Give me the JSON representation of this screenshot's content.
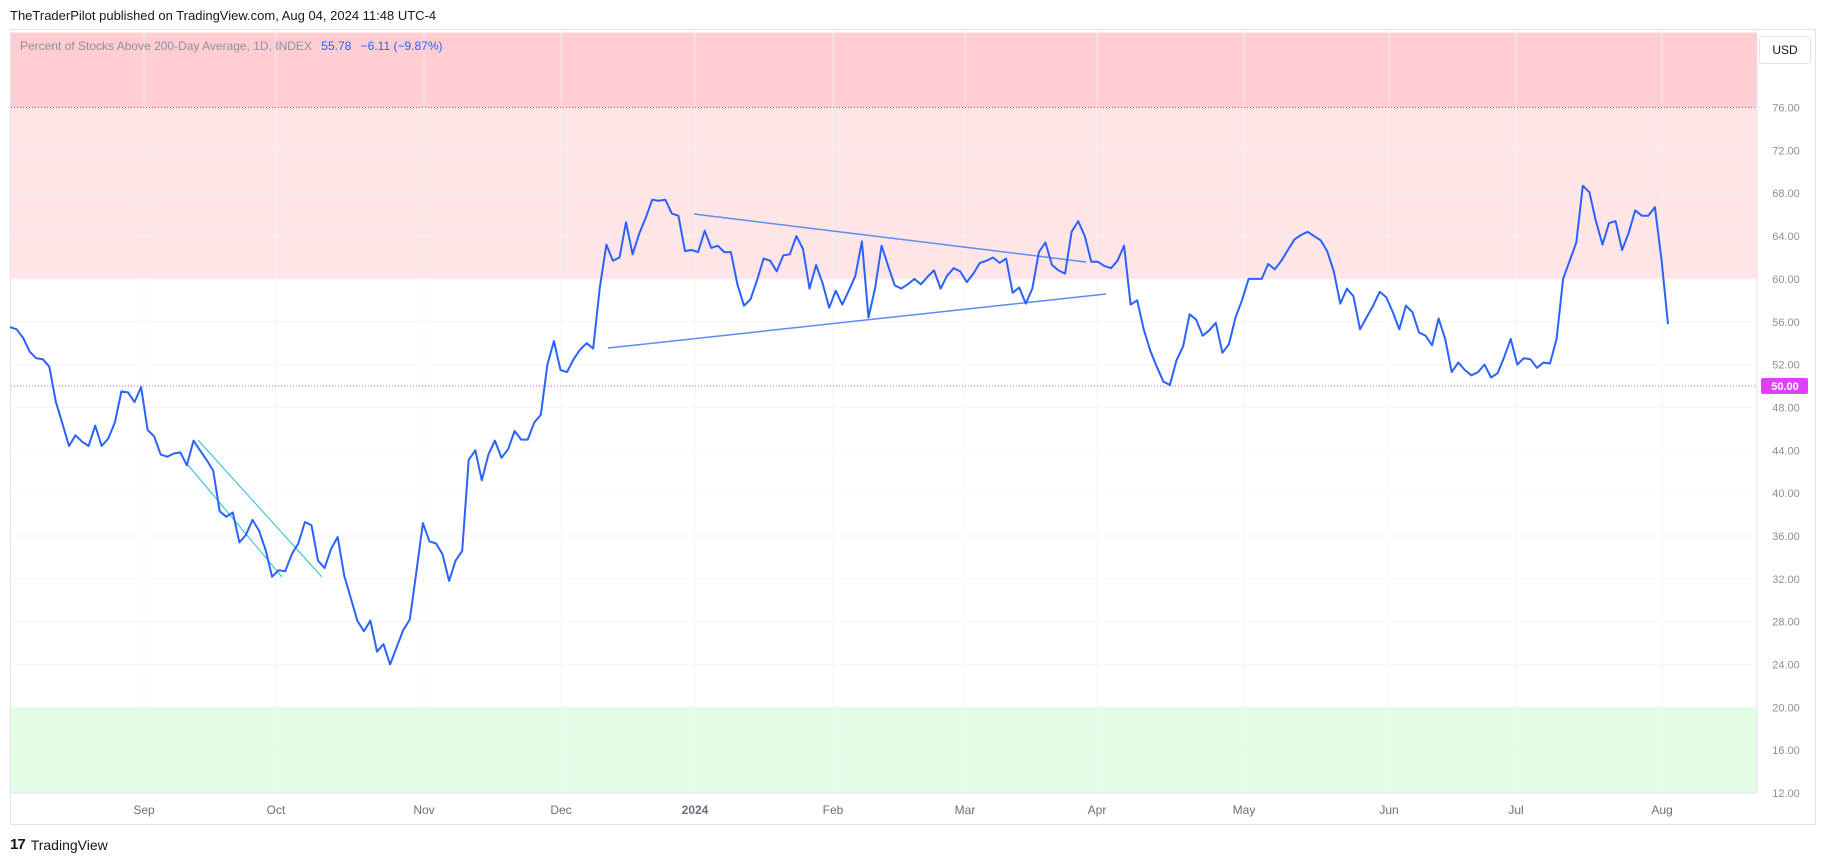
{
  "header": {
    "publisher_line": "TheTraderPilot published on TradingView.com, Aug 04, 2024 11:48 UTC-4"
  },
  "legend": {
    "series_name": "Percent of Stocks Above 200-Day Average, 1D, INDEX",
    "last": "55.78",
    "change": "−6.11 (−9.87%)"
  },
  "currency_button": "USD",
  "footer": {
    "logo_mark": "17",
    "brand": "TradingView"
  },
  "colors": {
    "line": "#2962ff",
    "trend_lines": "#5b8def",
    "channel": "#22c1d6",
    "overbought_strong": "#ffcdd2",
    "overbought": "#ffe5e6",
    "oversold": "#e2fde4",
    "level_76": "#e53935",
    "level_50": "#e040fb"
  },
  "chart_data": {
    "type": "line",
    "title": "Percent of Stocks Above 200-Day Average",
    "ylim": [
      12,
      83
    ],
    "yticks": [
      "76.00",
      "72.00",
      "68.00",
      "64.00",
      "60.00",
      "56.00",
      "52.00",
      "48.00",
      "44.00",
      "40.00",
      "36.00",
      "32.00",
      "28.00",
      "24.00",
      "20.00",
      "16.00",
      "12.00"
    ],
    "x_axis_labels": [
      "Sep",
      "Oct",
      "Nov",
      "Dec",
      "2024",
      "Feb",
      "Mar",
      "Apr",
      "May",
      "Jun",
      "Jul",
      "Aug"
    ],
    "grid": true,
    "zones": [
      {
        "from": 76,
        "to": 83,
        "color": "#ffcdd2"
      },
      {
        "from": 60,
        "to": 76,
        "color": "#ffe5e6"
      },
      {
        "from": 12,
        "to": 20,
        "color": "#e2fde4"
      }
    ],
    "hlines": [
      {
        "value": 76,
        "color": "#e53935",
        "style": "dotted"
      },
      {
        "value": 50,
        "color": "#e040fb",
        "style": "dotted",
        "label": "50.00"
      }
    ],
    "series": [
      {
        "values": [
          55.5,
          55.3,
          54.5,
          53.2,
          52.6,
          52.5,
          51.8,
          48.5,
          46.5,
          44.4,
          45.4,
          44.8,
          44.4,
          46.3,
          44.4,
          45.1,
          46.6,
          49.5,
          49.4,
          48.5,
          49.9,
          45.9,
          45.3,
          43.6,
          43.4,
          43.7,
          43.8,
          42.6,
          44.9,
          44.0,
          43.1,
          42.1,
          38.3,
          37.8,
          38.2,
          35.4,
          36.1,
          37.5,
          36.5,
          34.7,
          32.2,
          32.8,
          32.7,
          34.3,
          35.3,
          37.3,
          37.0,
          33.7,
          33.0,
          34.8,
          35.9,
          32.3,
          30.2,
          28.1,
          27.1,
          28.1,
          25.2,
          25.9,
          24.0,
          25.6,
          27.2,
          28.2,
          32.6,
          37.2,
          35.5,
          35.3,
          34.3,
          31.8,
          33.7,
          34.6,
          43.1,
          44.0,
          41.2,
          43.6,
          44.9,
          43.3,
          44.1,
          45.8,
          45.0,
          45.0,
          46.6,
          47.3,
          52.0,
          54.2,
          51.5,
          51.3,
          52.5,
          53.4,
          54.0,
          53.5,
          59.2,
          63.2,
          61.7,
          62.0,
          65.3,
          62.3,
          64.2,
          65.7,
          67.4,
          67.3,
          67.4,
          66.1,
          65.9,
          62.6,
          62.7,
          62.5,
          64.5,
          62.9,
          63.1,
          62.5,
          62.5,
          59.5,
          57.5,
          58.1,
          59.9,
          61.9,
          61.7,
          60.7,
          62.2,
          62.3,
          64.0,
          62.8,
          59.1,
          61.3,
          59.6,
          57.3,
          58.9,
          57.6,
          58.9,
          60.3,
          63.5,
          56.4,
          59.1,
          63.1,
          61.2,
          59.4,
          59.1,
          59.5,
          60.0,
          59.5,
          60.2,
          60.8,
          59.1,
          60.3,
          61.0,
          60.7,
          59.7,
          60.5,
          61.5,
          61.7,
          62.0,
          61.5,
          61.9,
          58.7,
          59.2,
          57.7,
          59.1,
          62.5,
          63.4,
          61.3,
          60.8,
          60.5,
          64.4,
          65.4,
          64.0,
          61.6,
          61.6,
          61.2,
          61.0,
          61.7,
          63.1,
          57.6,
          58.0,
          55.3,
          53.3,
          51.8,
          50.4,
          50.1,
          52.4,
          53.7,
          56.7,
          56.2,
          54.7,
          55.2,
          55.9,
          53.1,
          53.9,
          56.4,
          58.0,
          60.0,
          60.0,
          60.0,
          61.4,
          60.9,
          61.7,
          62.7,
          63.7,
          64.1,
          64.4,
          64.0,
          63.6,
          62.6,
          60.7,
          57.7,
          59.1,
          58.4,
          55.3,
          56.4,
          57.5,
          58.8,
          58.3,
          56.9,
          55.3,
          57.5,
          56.9,
          55.0,
          54.7,
          53.8,
          56.3,
          54.4,
          51.3,
          52.2,
          51.5,
          51.0,
          51.3,
          52.0,
          50.8,
          51.2,
          52.7,
          54.4,
          52.0,
          52.6,
          52.5,
          51.7,
          52.2,
          52.1,
          54.4,
          60.0,
          61.7,
          63.4,
          68.7,
          68.1,
          65.4,
          63.2,
          65.2,
          65.4,
          62.7,
          64.3,
          66.4,
          65.9,
          65.9,
          66.7,
          61.9,
          55.78
        ]
      }
    ]
  }
}
